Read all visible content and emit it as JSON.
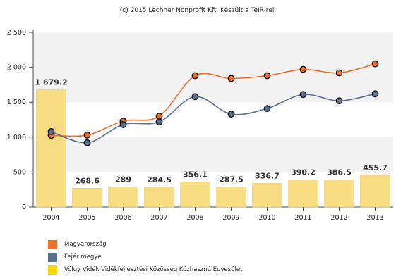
{
  "credit": "(c) 2015 Lechner Nonprofit Kft. Készült a TeIR-rel.",
  "chart_data": {
    "type": "bar",
    "categories": [
      "2004",
      "2005",
      "2006",
      "2007",
      "2008",
      "2009",
      "2010",
      "2011",
      "2012",
      "2013"
    ],
    "ylim": [
      0,
      2500
    ],
    "yticks": [
      0,
      500,
      1000,
      1500,
      2000,
      2500
    ],
    "ytick_labels": [
      "0",
      "500",
      "1 000",
      "1 500",
      "2 000",
      "2 500"
    ],
    "grid": "horizontal bands",
    "legend_position": "bottom-left",
    "series": [
      {
        "name": "Magyarország",
        "type": "line",
        "color": "#f07028",
        "values": [
          1025,
          1030,
          1230,
          1300,
          1880,
          1840,
          1880,
          1970,
          1920,
          2050
        ]
      },
      {
        "name": "Fejér megye",
        "type": "line",
        "color": "#5a7090",
        "values": [
          1080,
          920,
          1180,
          1220,
          1580,
          1330,
          1410,
          1610,
          1520,
          1620
        ]
      },
      {
        "name": "Völgy Vidék Vidékfejlesztési Közösség Közhasznú Egyesület",
        "type": "bar",
        "color": "#f8dc82",
        "values": [
          1679.2,
          268.6,
          289,
          284.5,
          356.1,
          287.5,
          336.7,
          390.2,
          386.5,
          455.7
        ],
        "labels": [
          "1 679.2",
          "268.6",
          "289",
          "284.5",
          "356.1",
          "287.5",
          "336.7",
          "390.2",
          "386.5",
          "455.7"
        ]
      }
    ]
  },
  "legend": [
    {
      "label": "Magyarország",
      "color": "#f07028"
    },
    {
      "label": "Fejér megye",
      "color": "#5a7090"
    },
    {
      "label": "Völgy Vidék Vidékfejlesztési Közösség Közhasznú Egyesület",
      "color": "#f8d800"
    }
  ]
}
